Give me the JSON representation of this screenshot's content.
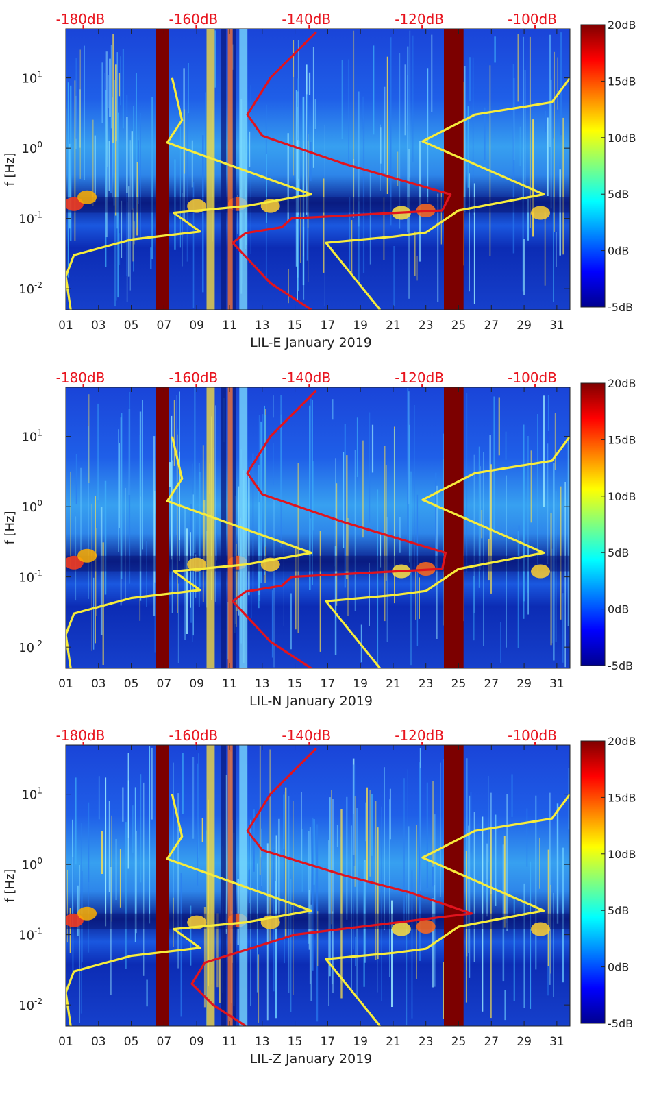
{
  "colors": {
    "db_axis": "#e8141e",
    "yellow_curve": "#f7ec3b",
    "red_curve": "#e0141e",
    "gap": "#7c0000",
    "deep_blue": "#1030b8"
  },
  "chart_data": [
    {
      "type": "heatmap",
      "xlabel": "LIL-E January 2019",
      "ylabel": "f [Hz]",
      "x_ticks": [
        "01",
        "03",
        "05",
        "07",
        "09",
        "11",
        "13",
        "15",
        "17",
        "19",
        "21",
        "23",
        "25",
        "27",
        "29",
        "31"
      ],
      "y_ticks": [
        "10-2",
        "100",
        "10-1",
        "101"
      ],
      "top_ticks": [
        "-180dB",
        "-160dB",
        "-140dB",
        "-120dB",
        "-100dB"
      ],
      "colorbar_ticks": [
        "20dB",
        "15dB",
        "10dB",
        "5dB",
        "0dB",
        "-5dB"
      ],
      "clim": [
        -5,
        20
      ],
      "xlim": [
        1,
        31.8
      ],
      "ylim": [
        0.005,
        50
      ],
      "y_scale": "log",
      "gaps": [
        [
          6.5,
          7.3
        ],
        [
          24.1,
          25.3
        ]
      ],
      "curves": {
        "yellow": [
          [
            20.2,
            0.005
          ],
          [
            16.9,
            0.045
          ],
          [
            21,
            0.055
          ],
          [
            23,
            0.063
          ],
          [
            25,
            0.13
          ],
          [
            30.2,
            0.22
          ],
          [
            22.8,
            1.25
          ],
          [
            26,
            3
          ],
          [
            30.7,
            4.5
          ],
          [
            31.8,
            10
          ]
        ],
        "red": [
          [
            16,
            0.005
          ],
          [
            13.5,
            0.012
          ],
          [
            11.2,
            0.045
          ],
          [
            12,
            0.062
          ],
          [
            14.2,
            0.075
          ],
          [
            14.8,
            0.1
          ],
          [
            24,
            0.13
          ],
          [
            24.5,
            0.22
          ],
          [
            18,
            0.6
          ],
          [
            13,
            1.5
          ],
          [
            12.1,
            3
          ],
          [
            13.5,
            10
          ],
          [
            16.3,
            45
          ]
        ],
        "yellow_left": [
          [
            1.3,
            0.005
          ],
          [
            1.0,
            0.015
          ],
          [
            1.5,
            0.03
          ],
          [
            5,
            0.05
          ],
          [
            9.2,
            0.065
          ],
          [
            7.6,
            0.12
          ],
          [
            12,
            0.15
          ],
          [
            16,
            0.22
          ],
          [
            7.2,
            1.2
          ],
          [
            8.1,
            2.5
          ],
          [
            7.5,
            10
          ]
        ]
      }
    },
    {
      "type": "heatmap",
      "xlabel": "LIL-N January 2019",
      "ylabel": "f [Hz]",
      "x_ticks": [
        "01",
        "03",
        "05",
        "07",
        "09",
        "11",
        "13",
        "15",
        "17",
        "19",
        "21",
        "23",
        "25",
        "27",
        "29",
        "31"
      ],
      "y_ticks": [
        "10-2",
        "100",
        "10-1",
        "101"
      ],
      "top_ticks": [
        "-180dB",
        "-160dB",
        "-140dB",
        "-120dB",
        "-100dB"
      ],
      "colorbar_ticks": [
        "20dB",
        "15dB",
        "10dB",
        "5dB",
        "0dB",
        "-5dB"
      ],
      "clim": [
        -5,
        20
      ],
      "xlim": [
        1,
        31.8
      ],
      "ylim": [
        0.005,
        50
      ],
      "y_scale": "log",
      "gaps": [
        [
          6.5,
          7.3
        ],
        [
          24.1,
          25.3
        ]
      ],
      "curves": {
        "yellow": [
          [
            20.2,
            0.005
          ],
          [
            16.9,
            0.045
          ],
          [
            21,
            0.055
          ],
          [
            23,
            0.063
          ],
          [
            25,
            0.13
          ],
          [
            30.2,
            0.22
          ],
          [
            22.8,
            1.25
          ],
          [
            26,
            3
          ],
          [
            30.7,
            4.5
          ],
          [
            31.8,
            10
          ]
        ],
        "red": [
          [
            16,
            0.005
          ],
          [
            13.5,
            0.012
          ],
          [
            11.2,
            0.045
          ],
          [
            12,
            0.062
          ],
          [
            14.2,
            0.075
          ],
          [
            14.8,
            0.1
          ],
          [
            24,
            0.13
          ],
          [
            24.2,
            0.22
          ],
          [
            18,
            0.6
          ],
          [
            13,
            1.5
          ],
          [
            12.1,
            3
          ],
          [
            13.5,
            10
          ],
          [
            16.3,
            45
          ]
        ],
        "yellow_left": [
          [
            1.3,
            0.005
          ],
          [
            1.0,
            0.015
          ],
          [
            1.5,
            0.03
          ],
          [
            5,
            0.05
          ],
          [
            9.2,
            0.065
          ],
          [
            7.6,
            0.12
          ],
          [
            12,
            0.15
          ],
          [
            16,
            0.22
          ],
          [
            7.2,
            1.2
          ],
          [
            8.1,
            2.5
          ],
          [
            7.5,
            10
          ]
        ]
      }
    },
    {
      "type": "heatmap",
      "xlabel": "LIL-Z January 2019",
      "ylabel": "f [Hz]",
      "x_ticks": [
        "01",
        "03",
        "05",
        "07",
        "09",
        "11",
        "13",
        "15",
        "17",
        "19",
        "21",
        "23",
        "25",
        "27",
        "29",
        "31"
      ],
      "y_ticks": [
        "10-2",
        "100",
        "10-1",
        "101"
      ],
      "top_ticks": [
        "-180dB",
        "-160dB",
        "-140dB",
        "-120dB",
        "-100dB"
      ],
      "colorbar_ticks": [
        "20dB",
        "15dB",
        "10dB",
        "5dB",
        "0dB",
        "-5dB"
      ],
      "clim": [
        -5,
        20
      ],
      "xlim": [
        1,
        31.8
      ],
      "ylim": [
        0.005,
        50
      ],
      "y_scale": "log",
      "gaps": [
        [
          6.5,
          7.3
        ],
        [
          24.1,
          25.3
        ]
      ],
      "curves": {
        "yellow": [
          [
            20.2,
            0.005
          ],
          [
            16.9,
            0.045
          ],
          [
            21,
            0.055
          ],
          [
            23,
            0.063
          ],
          [
            25,
            0.13
          ],
          [
            30.2,
            0.22
          ],
          [
            22.8,
            1.25
          ],
          [
            26,
            3
          ],
          [
            30.7,
            4.5
          ],
          [
            31.8,
            10
          ]
        ],
        "red": [
          [
            12,
            0.005
          ],
          [
            10,
            0.01
          ],
          [
            8.7,
            0.02
          ],
          [
            9.5,
            0.04
          ],
          [
            15,
            0.1
          ],
          [
            25.8,
            0.2
          ],
          [
            22,
            0.4
          ],
          [
            18,
            0.7
          ],
          [
            13,
            1.6
          ],
          [
            12.1,
            3
          ],
          [
            13.5,
            10
          ],
          [
            16.3,
            45
          ]
        ],
        "yellow_left": [
          [
            1.3,
            0.005
          ],
          [
            1.0,
            0.015
          ],
          [
            1.5,
            0.03
          ],
          [
            5,
            0.05
          ],
          [
            9.2,
            0.065
          ],
          [
            7.6,
            0.12
          ],
          [
            12,
            0.15
          ],
          [
            16,
            0.22
          ],
          [
            7.2,
            1.2
          ],
          [
            8.1,
            2.5
          ],
          [
            7.5,
            10
          ]
        ]
      }
    }
  ]
}
